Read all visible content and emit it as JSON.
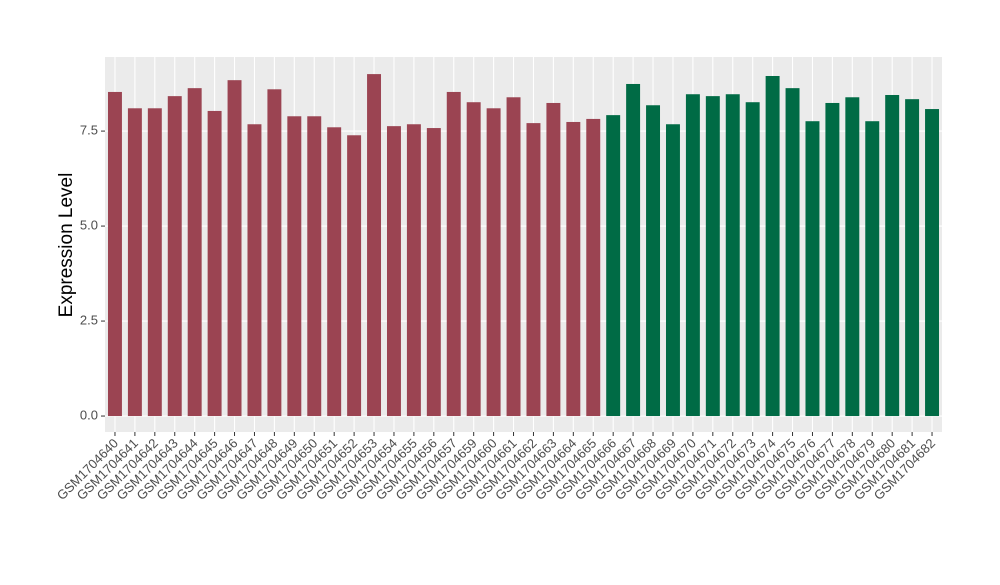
{
  "chart_data": {
    "type": "bar",
    "y_label": "Expression Level",
    "categories": [
      "GSM1704640",
      "GSM1704641",
      "GSM1704642",
      "GSM1704643",
      "GSM1704644",
      "GSM1704645",
      "GSM1704646",
      "GSM1704647",
      "GSM1704648",
      "GSM1704649",
      "GSM1704650",
      "GSM1704651",
      "GSM1704652",
      "GSM1704653",
      "GSM1704654",
      "GSM1704655",
      "GSM1704656",
      "GSM1704657",
      "GSM1704659",
      "GSM1704660",
      "GSM1704661",
      "GSM1704662",
      "GSM1704663",
      "GSM1704664",
      "GSM1704665",
      "GSM1704666",
      "GSM1704667",
      "GSM1704668",
      "GSM1704669",
      "GSM1704670",
      "GSM1704671",
      "GSM1704672",
      "GSM1704673",
      "GSM1704674",
      "GSM1704675",
      "GSM1704676",
      "GSM1704677",
      "GSM1704678",
      "GSM1704679",
      "GSM1704680",
      "GSM1704681",
      "GSM1704682"
    ],
    "series": [
      {
        "color": "#9b4452",
        "values": [
          8.53,
          8.1,
          8.1,
          8.42,
          8.63,
          8.03,
          8.84,
          7.68,
          8.6,
          7.89,
          7.89,
          7.6,
          7.39,
          9.0,
          7.63,
          7.68,
          7.58,
          8.53,
          8.26,
          8.1,
          8.39,
          7.71,
          8.24,
          7.74,
          7.82,
          null,
          null,
          null,
          null,
          null,
          null,
          null,
          null,
          null,
          null,
          null,
          null,
          null,
          null,
          null,
          null,
          null
        ]
      },
      {
        "color": "#006b45",
        "values": [
          null,
          null,
          null,
          null,
          null,
          null,
          null,
          null,
          null,
          null,
          null,
          null,
          null,
          null,
          null,
          null,
          null,
          null,
          null,
          null,
          null,
          null,
          null,
          null,
          null,
          7.92,
          8.74,
          8.18,
          7.68,
          8.47,
          8.42,
          8.47,
          8.26,
          8.95,
          8.63,
          7.76,
          8.24,
          8.39,
          7.76,
          8.45,
          8.34,
          8.08
        ]
      }
    ],
    "ylim": [
      -0.42,
      9.45
    ],
    "yticks": [
      {
        "value": 0,
        "label": "0.0"
      },
      {
        "value": 2.5,
        "label": "2.5"
      },
      {
        "value": 5,
        "label": "5.0"
      },
      {
        "value": 7.5,
        "label": "7.5"
      }
    ],
    "grid": true
  }
}
